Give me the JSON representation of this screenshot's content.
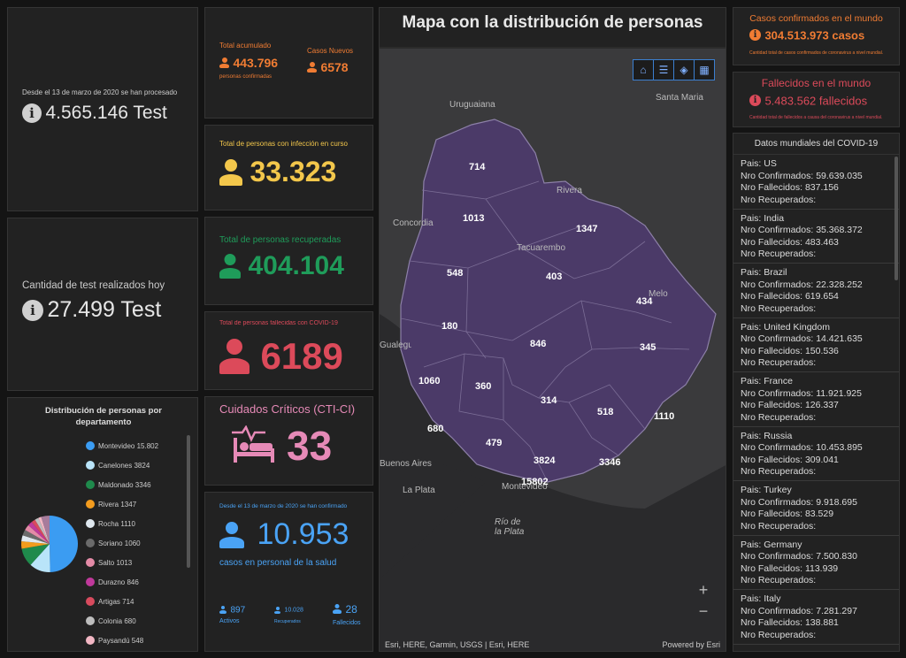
{
  "tests_total": {
    "caption": "Desde el 13 de marzo de 2020 se han procesado",
    "value": "4.565.146 Test"
  },
  "tests_today": {
    "caption": "Cantidad de test realizados hoy",
    "value": "27.499 Test"
  },
  "accumulated": {
    "total_label": "Total acumulado",
    "total_value": "443.796",
    "total_sub": "personas confirmadas",
    "new_label": "Casos Nuevos",
    "new_value": "6578"
  },
  "active": {
    "label": "Total de personas con infección en curso",
    "value": "33.323"
  },
  "recovered": {
    "label": "Total de personas recuperadas",
    "value": "404.104"
  },
  "deceased": {
    "label": "Total de personas fallecidas con COVID-19",
    "value": "6189"
  },
  "critical": {
    "label": "Cuidados Críticos (CTI-CI)",
    "value": "33"
  },
  "health_staff": {
    "caption": "Desde el 13 de marzo de 2020 se han confirmado",
    "value": "10.953",
    "sub": "casos en personal de la salud",
    "active_value": "897",
    "active_label": "Activos",
    "recovered_value": "10.028",
    "recovered_label": "Recuperados",
    "deceased_value": "28",
    "deceased_label": "Fallecidos"
  },
  "distribution": {
    "title": "Distribución de personas por departamento",
    "items": [
      {
        "label": "Montevideo  15.802",
        "color": "#3b9cf2"
      },
      {
        "label": "Canelones  3824",
        "color": "#b9e4f9"
      },
      {
        "label": "Maldonado  3346",
        "color": "#1f8a4c"
      },
      {
        "label": "Rivera  1347",
        "color": "#f39c1e"
      },
      {
        "label": "Rocha  1110",
        "color": "#dfe8ef"
      },
      {
        "label": "Soriano  1060",
        "color": "#6b6b6b"
      },
      {
        "label": "Salto  1013",
        "color": "#e48ba7"
      },
      {
        "label": "Durazno  846",
        "color": "#c0399b"
      },
      {
        "label": "Artigas  714",
        "color": "#d84b5e"
      },
      {
        "label": "Colonia  680",
        "color": "#bdbdbd"
      },
      {
        "label": "Paysandú  548",
        "color": "#f2b7c4"
      }
    ]
  },
  "map": {
    "title": "Mapa con la distribución de personas",
    "attribution": "Esri, HERE, Garmin, USGS | Esri, HERE",
    "powered": "Powered by Esri",
    "places": [
      "Uruguaiana",
      "Santa Maria",
      "Rivera",
      "Concordia",
      "Tacuarembo",
      "Melo",
      "Gualeguaychu",
      "Buenos Aires",
      "La Plata",
      "Montevideo",
      "Río de la Plata"
    ],
    "counts": [
      "714",
      "1013",
      "1347",
      "548",
      "403",
      "434",
      "180",
      "846",
      "345",
      "1060",
      "360",
      "314",
      "518",
      "1110",
      "680",
      "479",
      "3824",
      "3346",
      "15802"
    ]
  },
  "world_confirmed": {
    "label": "Casos confirmados en el mundo",
    "value": "304.513.973 casos",
    "sub": "Cantidad total de casos confirmados de coronavirus a nivel mundial."
  },
  "world_deaths": {
    "label": "Fallecidos en el mundo",
    "value": "5.483.562 fallecidos",
    "sub": "Cantidad total de fallecidos a causa del coronavirus a nivel mundial."
  },
  "world_list": {
    "title": "Datos mundiales del COVID-19",
    "items": [
      {
        "pais": "Pais: US",
        "conf": "Nro Confirmados: 59.639.035",
        "fall": "Nro Fallecidos: 837.156",
        "rec": "Nro Recuperados:"
      },
      {
        "pais": "Pais: India",
        "conf": "Nro Confirmados: 35.368.372",
        "fall": "Nro Fallecidos: 483.463",
        "rec": "Nro Recuperados:"
      },
      {
        "pais": "Pais: Brazil",
        "conf": "Nro Confirmados: 22.328.252",
        "fall": "Nro Fallecidos: 619.654",
        "rec": "Nro Recuperados:"
      },
      {
        "pais": "Pais: United Kingdom",
        "conf": "Nro Confirmados: 14.421.635",
        "fall": "Nro Fallecidos: 150.536",
        "rec": "Nro Recuperados:"
      },
      {
        "pais": "Pais: France",
        "conf": "Nro Confirmados: 11.921.925",
        "fall": "Nro Fallecidos: 126.337",
        "rec": "Nro Recuperados:"
      },
      {
        "pais": "Pais: Russia",
        "conf": "Nro Confirmados: 10.453.895",
        "fall": "Nro Fallecidos: 309.041",
        "rec": "Nro Recuperados:"
      },
      {
        "pais": "Pais: Turkey",
        "conf": "Nro Confirmados: 9.918.695",
        "fall": "Nro Fallecidos: 83.529",
        "rec": "Nro Recuperados:"
      },
      {
        "pais": "Pais: Germany",
        "conf": "Nro Confirmados: 7.500.830",
        "fall": "Nro Fallecidos: 113.939",
        "rec": "Nro Recuperados:"
      },
      {
        "pais": "Pais: Italy",
        "conf": "Nro Confirmados: 7.281.297",
        "fall": "Nro Fallecidos: 138.881",
        "rec": "Nro Recuperados:"
      }
    ]
  },
  "colors": {
    "orange": "#f07c33",
    "yellow": "#f3c74b",
    "green": "#1f9c5a",
    "red": "#dc4a5a",
    "pink": "#e68ab7",
    "blue": "#4aa3f5",
    "map_fill": "#4b3a68"
  }
}
